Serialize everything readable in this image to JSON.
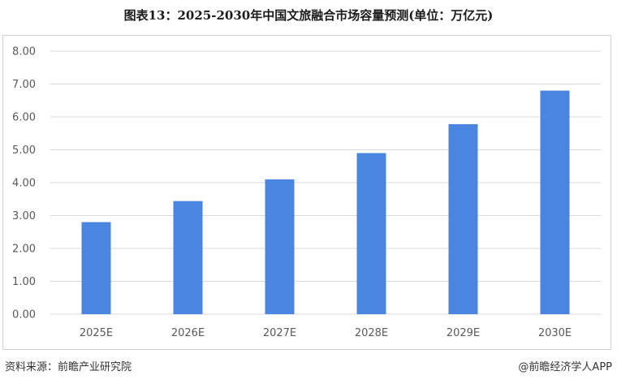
{
  "title": "图表13：2025-2030年中国文旅融合市场容量预测(单位：万亿元)",
  "source": "资料来源：前瞻产业研究院",
  "credit": "@前瞻经济学人APP",
  "colors": {
    "bar": "#4a86e0",
    "grid": "#d9d9d9",
    "frame": "#d0d0d0"
  },
  "chart_data": {
    "type": "bar",
    "categories": [
      "2025E",
      "2026E",
      "2027E",
      "2028E",
      "2029E",
      "2030E"
    ],
    "values": [
      2.8,
      3.44,
      4.1,
      4.9,
      5.78,
      6.8
    ],
    "ylim": [
      0,
      8
    ],
    "yticks": [
      "0.00",
      "1.00",
      "2.00",
      "3.00",
      "4.00",
      "5.00",
      "6.00",
      "7.00",
      "8.00"
    ],
    "grid": true,
    "legend": "none"
  }
}
